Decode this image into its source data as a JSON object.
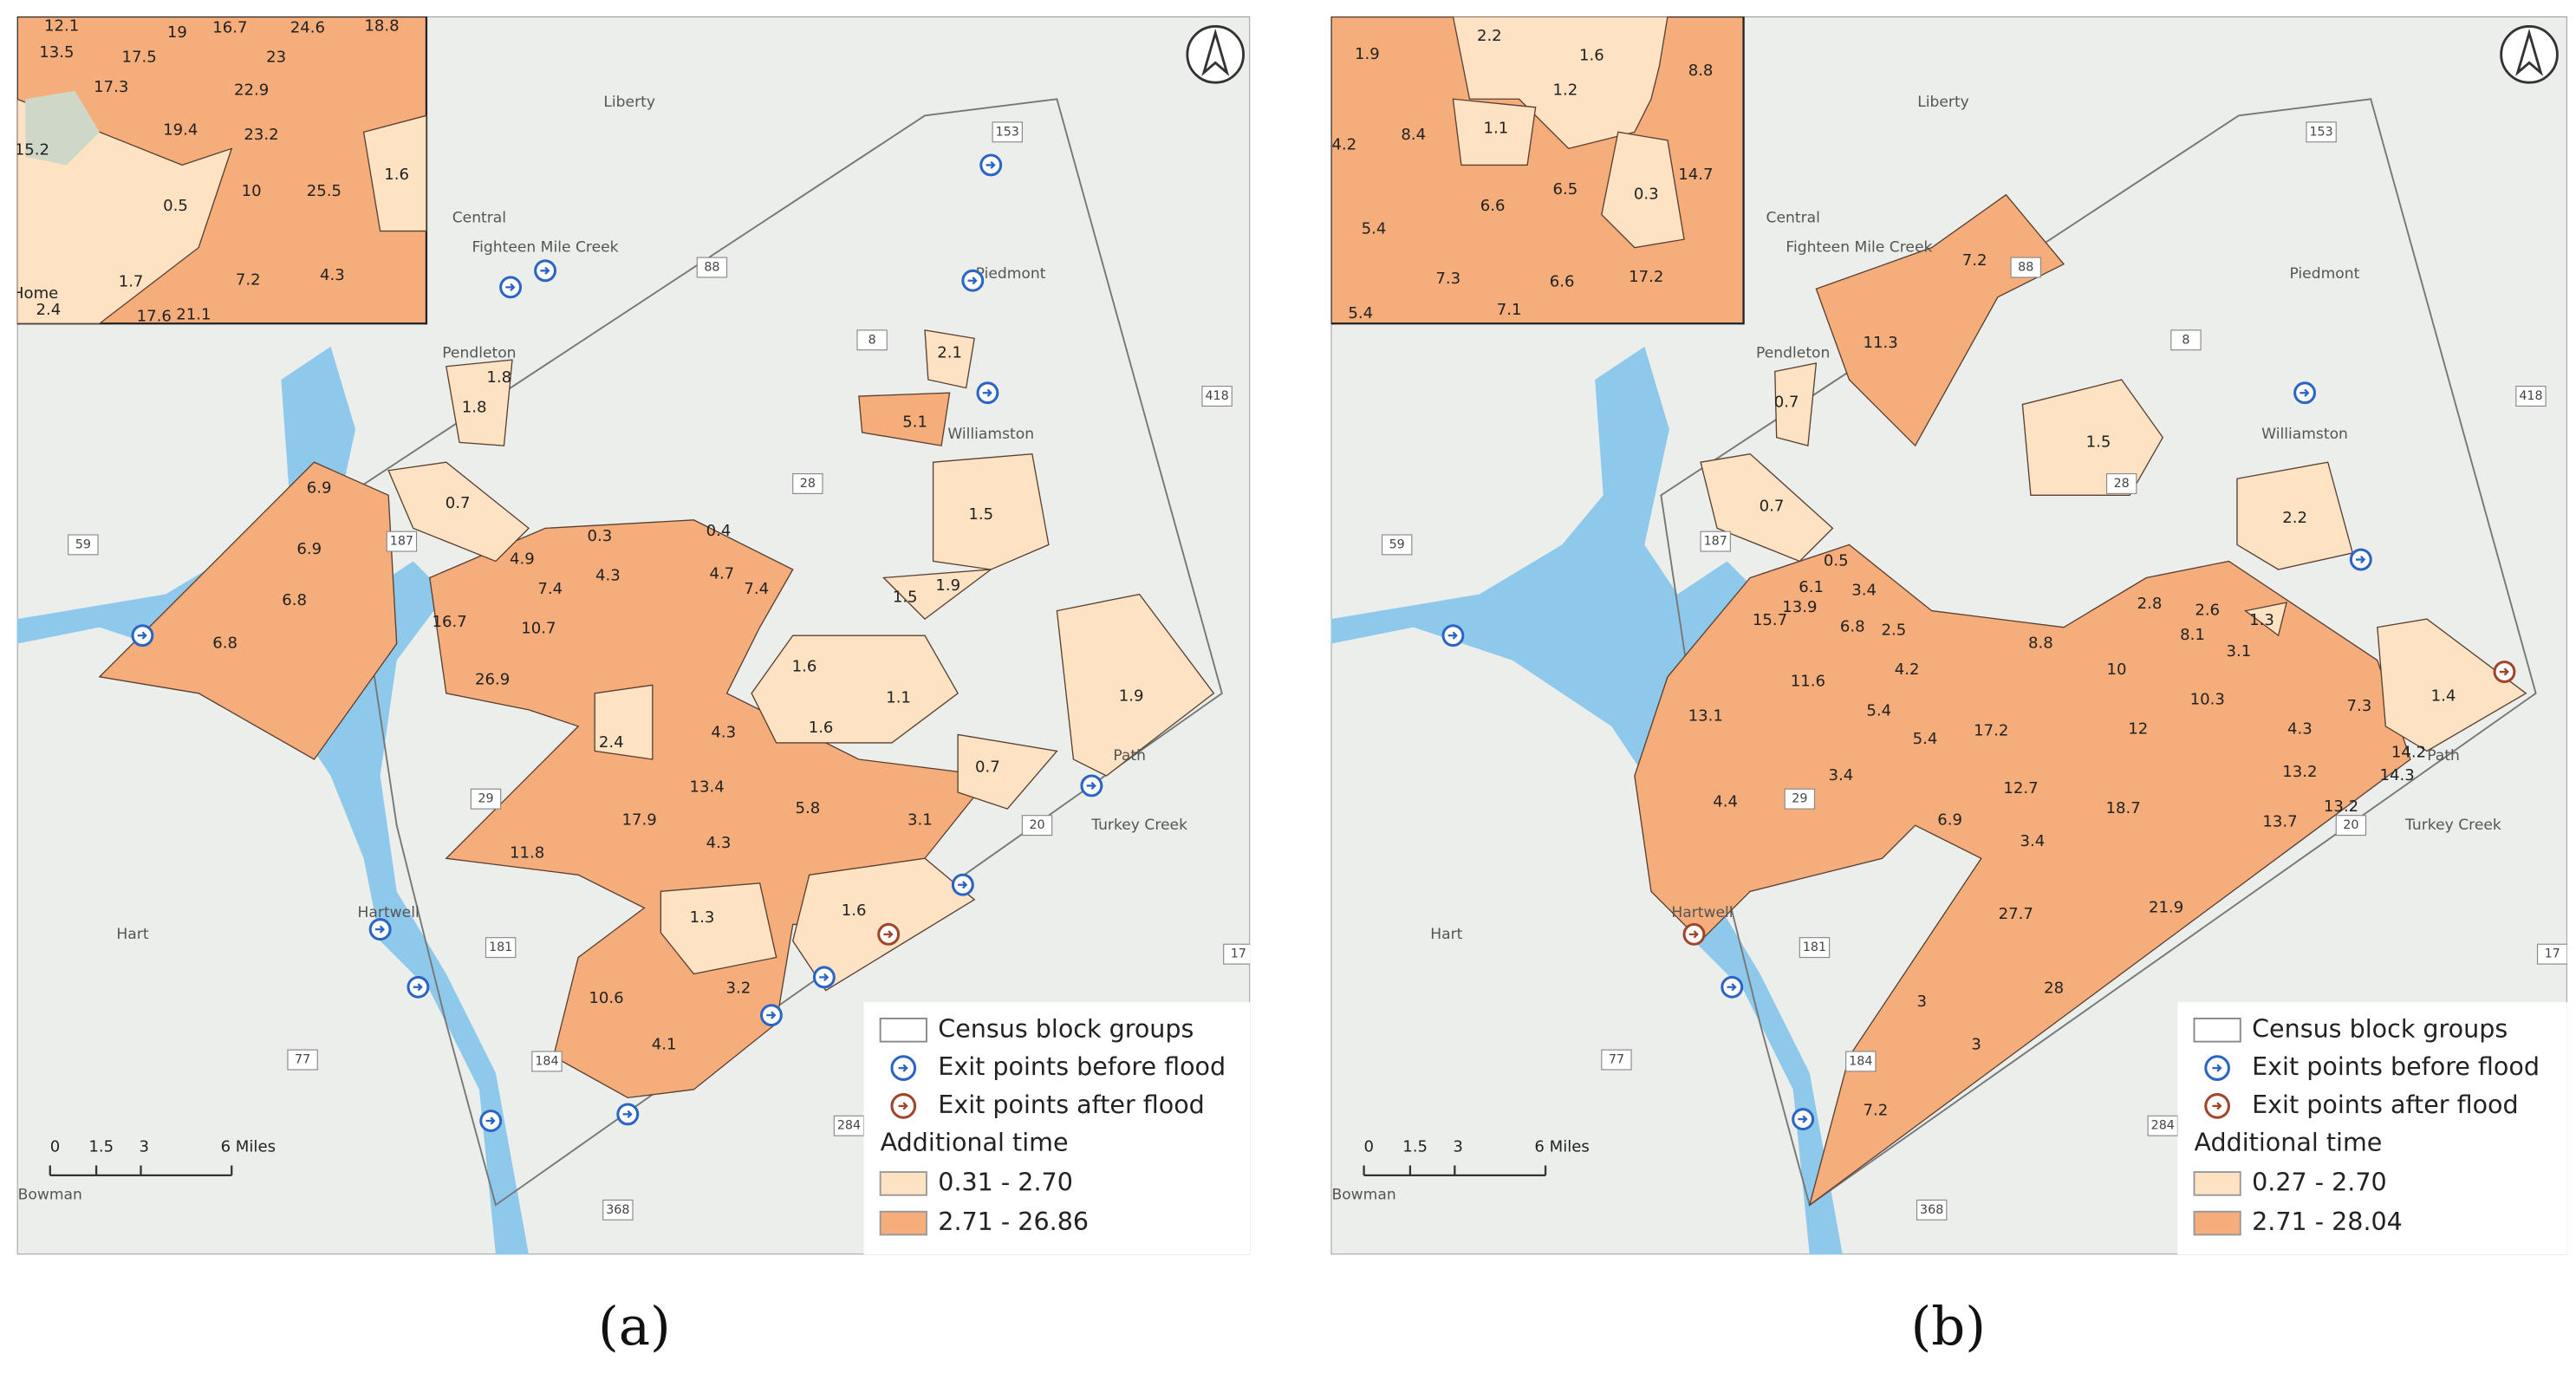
{
  "panels": [
    {
      "caption": "(a)",
      "inset_labels": [
        "12.1",
        "13.5",
        "17.5",
        "19",
        "16.7",
        "24.6",
        "18.8",
        "17.3",
        "23",
        "22.9",
        "19.4",
        "23.2",
        "15.2",
        "1.6",
        "0.5",
        "10",
        "25.5",
        "1.7",
        "7.2",
        "4.3",
        "Home",
        "2.4",
        "17.6",
        "21.1"
      ],
      "map_labels": [
        "6.9",
        "6.9",
        "6.8",
        "6.8",
        "0.7",
        "1.8",
        "1.8",
        "5.1",
        "2.1",
        "1.5",
        "1.9",
        "1.5",
        "16.7",
        "26.9",
        "10.7",
        "7.4",
        "4.9",
        "4.3",
        "4.7",
        "7.4",
        "0.4",
        "1.6",
        "1.1",
        "1.6",
        "1.9",
        "0.7",
        "4.3",
        "2.4",
        "13.4",
        "17.9",
        "11.8",
        "4.3",
        "5.8",
        "3.1",
        "1.3",
        "1.6",
        "10.6",
        "3.2",
        "4.1",
        "0.3"
      ],
      "place_names": [
        "Liberty",
        "Central",
        "Pendleton",
        "Piedmont",
        "Williamston",
        "Hartwell",
        "Hart",
        "Bowman",
        "Path",
        "Fighteen Mile Creek",
        "Turkey Creek"
      ],
      "routes": [
        "153",
        "187",
        "59",
        "29",
        "20",
        "418",
        "181",
        "77",
        "184",
        "284",
        "368",
        "8",
        "88",
        "28",
        "17"
      ],
      "legend": {
        "items": [
          "Census block groups",
          "Exit points before flood",
          "Exit points after flood"
        ],
        "title": "Additional time",
        "classes": [
          "0.31 - 2.70",
          "2.71 - 26.86"
        ]
      },
      "scale": [
        "0",
        "1.5",
        "3",
        "6 Miles"
      ]
    },
    {
      "caption": "(b)",
      "inset_labels": [
        "2.2",
        "1.9",
        "1.6",
        "1.2",
        "8.8",
        "8.4",
        "1.1",
        "4.2",
        "14.7",
        "6.6",
        "6.5",
        "0.3",
        "5.4",
        "7.3",
        "6.6",
        "17.2",
        "5.4",
        "7.1"
      ],
      "map_labels": [
        "7.2",
        "11.3",
        "0.7",
        "1.5",
        "2.2",
        "0.7",
        "0.5",
        "3.4",
        "6.1",
        "13.9",
        "15.7",
        "6.8",
        "2.5",
        "11.6",
        "4.2",
        "5.4",
        "13.1",
        "8.8",
        "2.8",
        "8.1",
        "3.1",
        "2.6",
        "1.3",
        "1.4",
        "10",
        "10.3",
        "12",
        "4.3",
        "7.3",
        "17.2",
        "13.2",
        "13.2",
        "14.2",
        "14.3",
        "3.4",
        "4.4",
        "5.4",
        "6.9",
        "12.7",
        "18.7",
        "13.7",
        "3.4",
        "27.7",
        "21.9",
        "28",
        "3",
        "3",
        "7.2"
      ],
      "place_names": [
        "Liberty",
        "Central",
        "Pendleton",
        "Piedmont",
        "Williamston",
        "Hartwell",
        "Hart",
        "Bowman",
        "Path",
        "Fighteen Mile Creek",
        "Turkey Creek"
      ],
      "routes": [
        "153",
        "187",
        "59",
        "29",
        "20",
        "418",
        "181",
        "77",
        "184",
        "284",
        "368",
        "8",
        "88",
        "28",
        "17"
      ],
      "legend": {
        "items": [
          "Census block groups",
          "Exit points before flood",
          "Exit points after flood"
        ],
        "title": "Additional time",
        "classes": [
          "0.27 - 2.70",
          "2.71 - 28.04"
        ]
      },
      "scale": [
        "0",
        "1.5",
        "3",
        "6 Miles"
      ]
    }
  ]
}
